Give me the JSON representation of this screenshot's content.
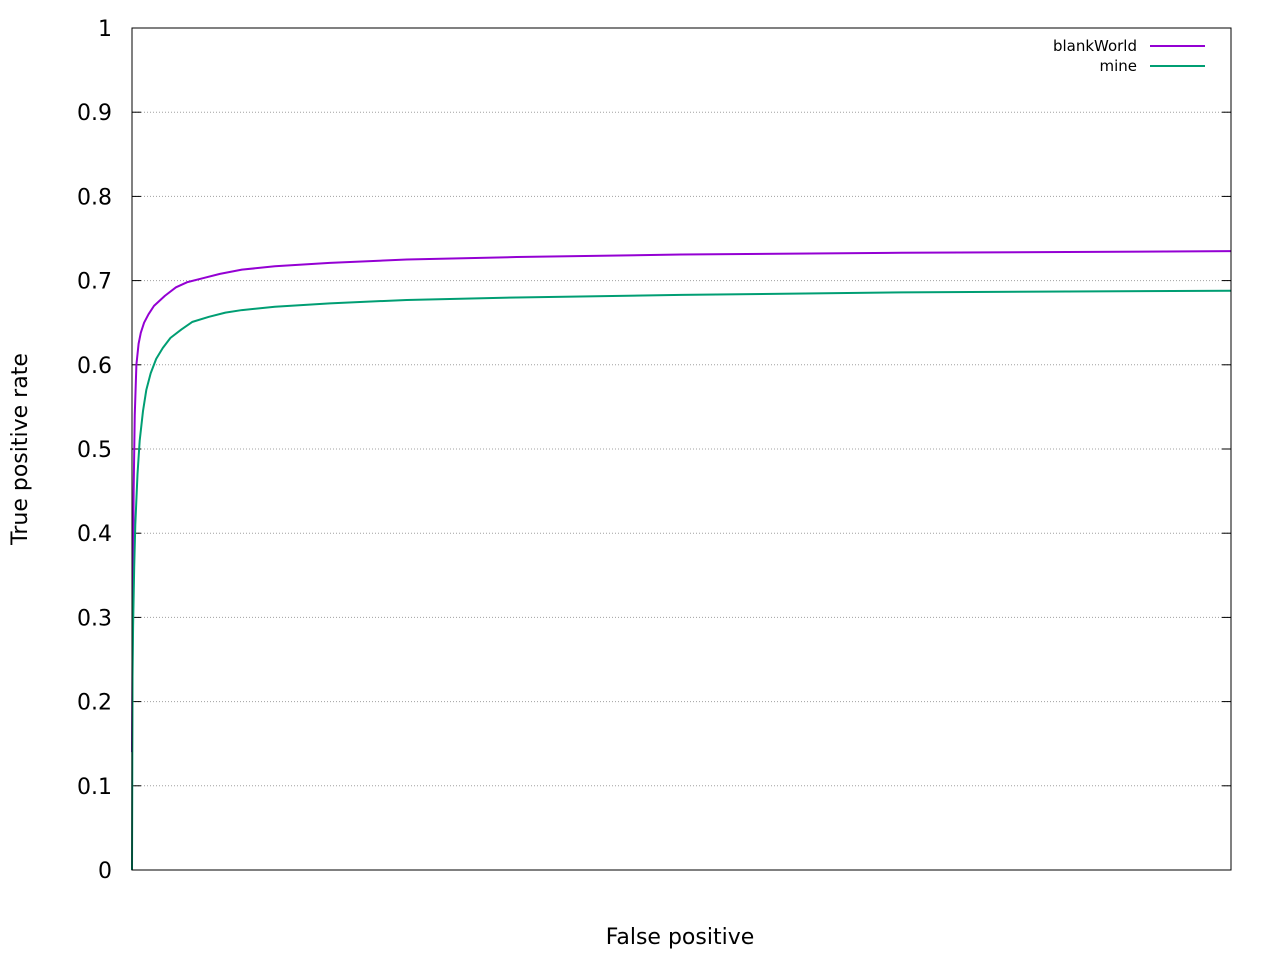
{
  "chart_data": {
    "type": "line",
    "title": "",
    "xlabel": "False positive",
    "ylabel": "True positive rate",
    "xlim": [
      0,
      1
    ],
    "ylim": [
      0,
      1
    ],
    "yticks": [
      "0",
      "0.1",
      "0.2",
      "0.3",
      "0.4",
      "0.5",
      "0.6",
      "0.7",
      "0.8",
      "0.9",
      "1"
    ],
    "grid": true,
    "legend_position": "top-right",
    "series": [
      {
        "name": "blankWorld",
        "color": "#9400d3",
        "x": [
          0,
          0.0003,
          0.0008,
          0.0015,
          0.0025,
          0.004,
          0.006,
          0.008,
          0.011,
          0.015,
          0.02,
          0.03,
          0.04,
          0.05,
          0.065,
          0.08,
          0.1,
          0.13,
          0.18,
          0.25,
          0.35,
          0.5,
          0.7,
          1.0
        ],
        "y": [
          0.14,
          0.21,
          0.33,
          0.45,
          0.54,
          0.6,
          0.625,
          0.638,
          0.65,
          0.66,
          0.67,
          0.682,
          0.692,
          0.698,
          0.703,
          0.708,
          0.713,
          0.717,
          0.721,
          0.725,
          0.728,
          0.731,
          0.733,
          0.735
        ]
      },
      {
        "name": "mine",
        "color": "#009e73",
        "x": [
          0,
          0.0005,
          0.001,
          0.002,
          0.003,
          0.005,
          0.007,
          0.01,
          0.013,
          0.017,
          0.022,
          0.028,
          0.035,
          0.045,
          0.055,
          0.07,
          0.085,
          0.1,
          0.13,
          0.18,
          0.25,
          0.35,
          0.5,
          0.7,
          1.0
        ],
        "y": [
          0.0,
          0.23,
          0.29,
          0.36,
          0.41,
          0.47,
          0.51,
          0.545,
          0.57,
          0.59,
          0.607,
          0.62,
          0.632,
          0.642,
          0.651,
          0.657,
          0.662,
          0.665,
          0.669,
          0.673,
          0.677,
          0.68,
          0.683,
          0.686,
          0.688
        ]
      }
    ]
  }
}
